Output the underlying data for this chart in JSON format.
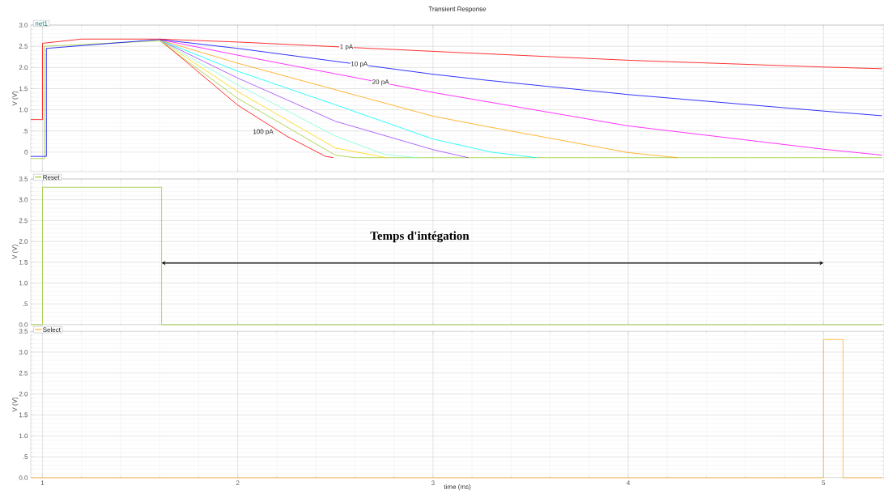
{
  "chart_data": [
    {
      "type": "line",
      "title": "Transient Response",
      "ylabel": "V (V)",
      "legend_title": "net1",
      "legend": "top left",
      "grid": true,
      "tick_labels": "y",
      "xlim": [
        0.94,
        5.31
      ],
      "ylim": [
        -0.46,
        3.0
      ],
      "xticks": [
        1,
        2,
        3,
        4,
        5
      ],
      "yticks": [
        0,
        {
          "value": 0.5,
          "label": ".5"
        },
        {
          "value": 1,
          "label": "1.0"
        },
        {
          "value": 1.5,
          "label": "1.5"
        },
        {
          "value": 2,
          "label": "2.0"
        },
        {
          "value": 2.5,
          "label": "2.5"
        },
        {
          "value": 3,
          "label": "3.0"
        }
      ],
      "series": [
        {
          "name": "1 pA",
          "color": "#ff0000",
          "x": [
            0.94,
            1.0,
            1.0,
            1.2,
            1.6,
            2,
            3,
            4,
            5,
            5.3
          ],
          "values": [
            0.77,
            0.77,
            2.57,
            2.67,
            2.67,
            2.6,
            2.38,
            2.17,
            2.01,
            1.97
          ]
        },
        {
          "name": "10 pA",
          "color": "#0000ff",
          "x": [
            0.94,
            1.02,
            1.02,
            1.6,
            2,
            3,
            3.27,
            4,
            5,
            5.3
          ],
          "values": [
            -0.1,
            -0.1,
            2.45,
            2.66,
            2.45,
            1.84,
            1.7,
            1.36,
            0.97,
            0.86
          ]
        },
        {
          "name": "20 pA",
          "color": "#ff00ff",
          "x": [
            1.6,
            2,
            3,
            4,
            5,
            5.3
          ],
          "values": [
            2.66,
            2.29,
            1.41,
            0.62,
            0.07,
            -0.07
          ]
        },
        {
          "color": "#ffa500",
          "x": [
            1.6,
            2,
            3,
            3.27,
            4,
            4.25
          ],
          "values": [
            2.65,
            2.1,
            0.85,
            0.61,
            -0.01,
            -0.13
          ]
        },
        {
          "color": "#00ffff",
          "x": [
            1.6,
            2,
            2.5,
            3,
            3.3,
            3.53
          ],
          "values": [
            2.65,
            1.91,
            1.12,
            0.31,
            0.0,
            -0.13
          ]
        },
        {
          "color": "#a040ff",
          "x": [
            1.6,
            2,
            2.5,
            3,
            3.18
          ],
          "values": [
            2.65,
            1.75,
            0.73,
            0.06,
            -0.13
          ]
        },
        {
          "color": "#7fffd4",
          "x": [
            1.6,
            2,
            2.5,
            2.75,
            2.92
          ],
          "values": [
            2.65,
            1.59,
            0.38,
            -0.05,
            -0.13
          ]
        },
        {
          "color": "#ffd700",
          "x": [
            1.6,
            2,
            2.5,
            2.76
          ],
          "values": [
            2.65,
            1.43,
            0.1,
            -0.13
          ]
        },
        {
          "color": "#9acd32",
          "x": [
            0.94,
            1.01,
            1.01,
            1.6,
            2,
            2.5,
            2.6,
            5.3
          ],
          "values": [
            -0.15,
            -0.15,
            2.5,
            2.63,
            1.27,
            -0.07,
            -0.13,
            -0.13
          ]
        },
        {
          "name": "100 pA",
          "color": "#ff0000",
          "x": [
            1.6,
            2,
            2.25,
            2.45,
            2.49
          ],
          "values": [
            2.66,
            1.11,
            0.38,
            -0.1,
            -0.13
          ]
        }
      ]
    },
    {
      "type": "line",
      "ylabel": "V (V)",
      "legend": "top left",
      "grid": true,
      "tick_labels": "y",
      "xlim": [
        0.94,
        5.31
      ],
      "ylim": [
        0,
        3.5
      ],
      "xticks": [
        1,
        2,
        3,
        4,
        5
      ],
      "yticks": [
        {
          "value": 0,
          "label": "0.0"
        },
        {
          "value": 0.5,
          "label": ".5"
        },
        {
          "value": 1,
          "label": "1.0"
        },
        {
          "value": 1.5,
          "label": "1.5"
        },
        {
          "value": 2,
          "label": "2.0"
        },
        {
          "value": 2.5,
          "label": "2.5"
        },
        {
          "value": 3,
          "label": "3.0"
        },
        {
          "value": 3.5,
          "label": "3.5"
        }
      ],
      "annotations": [
        "Temps d'intégation"
      ],
      "series": [
        {
          "name": "Reset",
          "color": "#9acd32",
          "x": [
            0.94,
            1.0,
            1.0,
            1.61,
            1.61,
            5.3
          ],
          "values": [
            0,
            0,
            3.3,
            3.3,
            0,
            0
          ]
        }
      ]
    },
    {
      "type": "line",
      "xlabel": "time (ms)",
      "ylabel": "V (V)",
      "legend": "top left",
      "grid": true,
      "xlim": [
        0.94,
        5.31
      ],
      "ylim": [
        0,
        3.5
      ],
      "xticks": [
        1,
        2,
        3,
        4,
        5
      ],
      "yticks": [
        {
          "value": 0,
          "label": "0.0"
        },
        {
          "value": 0.5,
          "label": ".5"
        },
        {
          "value": 1,
          "label": "1.0"
        },
        {
          "value": 1.5,
          "label": "1.5"
        },
        {
          "value": 2,
          "label": "2.0"
        },
        {
          "value": 2.5,
          "label": "2.5"
        },
        {
          "value": 3,
          "label": "3.0"
        },
        {
          "value": 3.5,
          "label": "3.5"
        }
      ],
      "series": [
        {
          "name": "Select",
          "color": "#ffb030",
          "x": [
            0.94,
            5.0,
            5.0,
            5.1,
            5.1,
            5.3
          ],
          "values": [
            0,
            0,
            3.3,
            3.3,
            0,
            0
          ]
        }
      ]
    }
  ]
}
